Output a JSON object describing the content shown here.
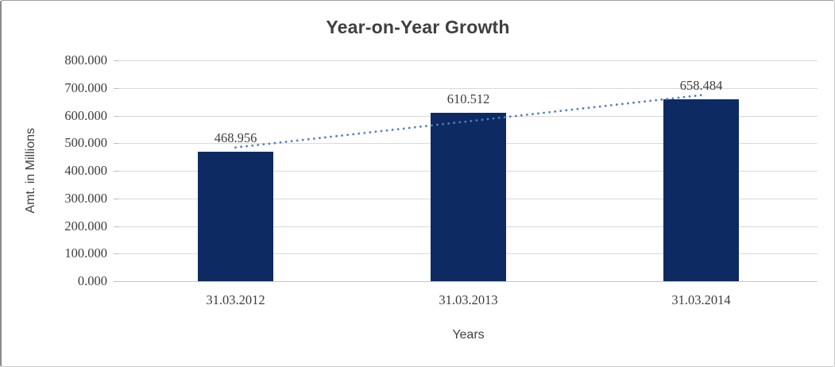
{
  "chart_data": {
    "type": "bar",
    "title": "Year-on-Year Growth",
    "xlabel": "Years",
    "ylabel": "Amt. in Millions",
    "categories": [
      "31.03.2012",
      "31.03.2013",
      "31.03.2014"
    ],
    "values": [
      468.956,
      610.512,
      658.484
    ],
    "value_labels": [
      "468.956",
      "610.512",
      "658.484"
    ],
    "ylim": [
      0,
      800
    ],
    "ytick_labels": [
      "0.000",
      "100.000",
      "200.000",
      "300.000",
      "400.000",
      "500.000",
      "600.000",
      "700.000",
      "800.000"
    ],
    "grid": true,
    "legend": "none",
    "trendline": {
      "type": "linear",
      "style": "dotted",
      "start_value": 484.55,
      "end_value": 674.08
    },
    "colors": {
      "bar": "#0d2a63",
      "gridline": "#d9d9d9",
      "axis_line": "#c6c6c6",
      "tick_mark": "#bfbfbf",
      "text": "#3d3d3d",
      "title": "#3f3f3f",
      "trendline": "#4f81bd"
    }
  }
}
